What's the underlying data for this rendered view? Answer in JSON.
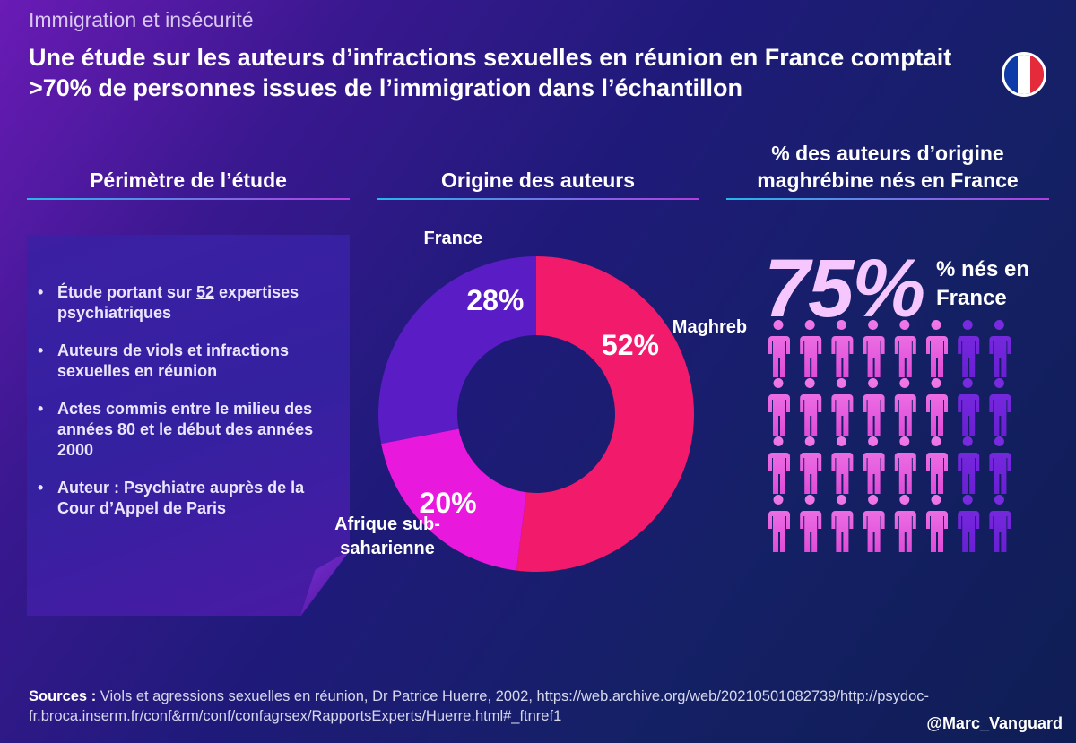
{
  "header": {
    "kicker": "Immigration et insécurité",
    "title": "Une étude sur les auteurs d’infractions sexuelles en réunion en France comptait >70% de personnes issues de l’immigration dans l’échantillon"
  },
  "flag": {
    "colors": [
      "#0f3ba8",
      "#ffffff",
      "#e42a3b"
    ]
  },
  "perimetre": {
    "title": "Périmètre de l’étude",
    "item1_prefix": "Étude portant sur ",
    "item1_number": "52",
    "item1_suffix": " expertises psychiatriques",
    "item2": "Auteurs de viols et infractions sexuelles en réunion",
    "item3": "Actes commis entre le milieu des années 80 et le début des années 2000",
    "item4": "Auteur : Psychiatre auprès de la Cour d’Appel de Paris"
  },
  "origine": {
    "title": "Origine des auteurs"
  },
  "nes_france": {
    "title_line1": "% des auteurs d’origine",
    "title_line2": "maghrébine nés en France",
    "big_value": "75%",
    "caption_line1": "% nés en",
    "caption_line2": "France"
  },
  "chart_data": [
    {
      "type": "pie",
      "title": "Origine des auteurs",
      "categories": [
        "Maghreb",
        "Afrique sub-saharienne",
        "France"
      ],
      "values": [
        52,
        20,
        28
      ],
      "value_labels": [
        "52%",
        "20%",
        "28%"
      ],
      "label_lines": [
        [
          "Maghreb"
        ],
        [
          "Afrique sub-",
          "saharienne"
        ],
        [
          "France"
        ]
      ],
      "colors": [
        "#f21a6b",
        "#e818dc",
        "#5a1cc4"
      ]
    },
    {
      "type": "pictogram",
      "title": "% des auteurs d’origine maghrébine nés en France",
      "total": 32,
      "filled": 24,
      "value_percent": 75,
      "colors": {
        "filled": "#f07ae8",
        "empty": "#6a1fd4"
      }
    }
  ],
  "sources": {
    "label": "Sources :",
    "text": " Viols et agressions sexuelles en réunion, Dr Patrice Huerre, 2002, https://web.archive.org/web/20210501082739/http://psydoc-fr.broca.inserm.fr/conf&rm/conf/confagrsex/RapportsExperts/Huerre.html#_ftnref1"
  },
  "handle": "@Marc_Vanguard"
}
